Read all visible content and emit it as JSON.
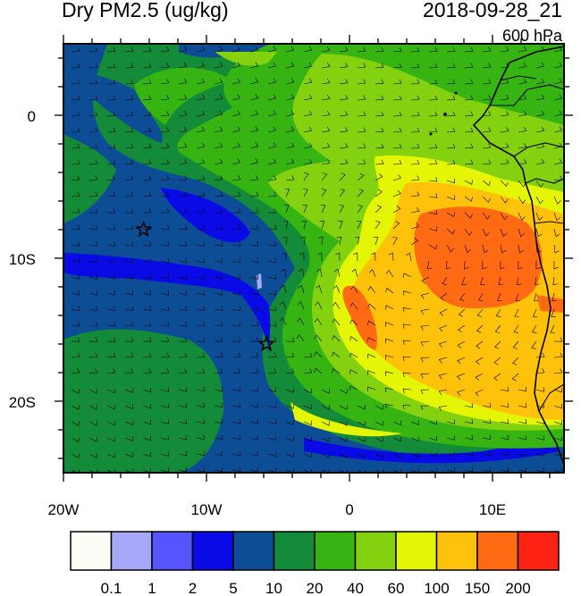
{
  "title": "Dry PM2.5 (ug/kg)",
  "datetime": "2018-09-28_21",
  "level": "600 hPa",
  "map": {
    "lon_range": [
      -20,
      15
    ],
    "lat_range": [
      -25,
      5
    ],
    "x_ticks": [
      "20W",
      "10W",
      "0",
      "10E"
    ],
    "y_ticks": [
      "0",
      "10S",
      "20S"
    ],
    "markers": [
      {
        "type": "star",
        "lon": -14.4,
        "lat": -8.0
      },
      {
        "type": "star",
        "lon": -5.8,
        "lat": -16.0
      }
    ]
  },
  "colorbar": {
    "labels": [
      "0.1",
      "1",
      "2",
      "5",
      "10",
      "20",
      "40",
      "60",
      "100",
      "150",
      "200"
    ],
    "colors": [
      "#fdfdf7",
      "#a8a8f9",
      "#5555ff",
      "#0a0ae6",
      "#0c4d96",
      "#138b38",
      "#36b412",
      "#84d110",
      "#e4f505",
      "#ffc20a",
      "#ff6a12",
      "#ff2215"
    ]
  }
}
